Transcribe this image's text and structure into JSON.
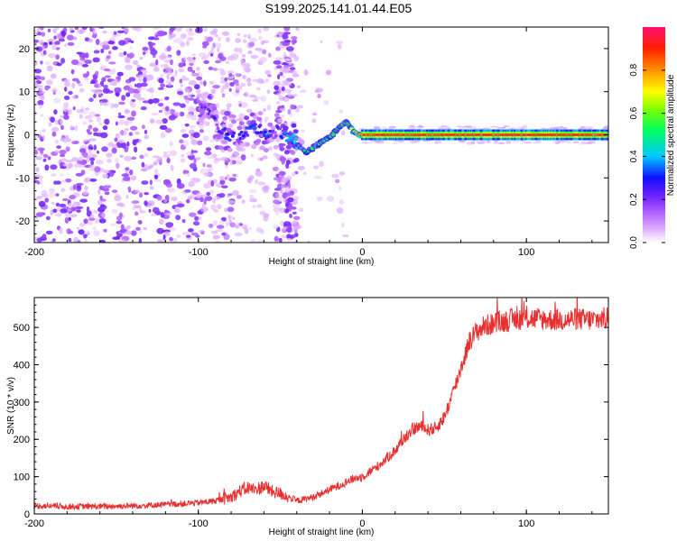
{
  "title": "S199.2025.141.01.44.E05",
  "chart_data": [
    {
      "type": "heatmap",
      "name": "spectrogram",
      "xlabel": "Height of straight line (km)",
      "ylabel": "Frequency (Hz)",
      "xlim": [
        -200,
        150
      ],
      "ylim": [
        -25,
        25
      ],
      "xticks": [
        -200,
        -100,
        0,
        100
      ],
      "yticks": [
        -20,
        -10,
        0,
        10,
        20
      ],
      "colorbar": {
        "label": "Normalized spectral amplitude",
        "range": [
          0,
          1
        ],
        "ticks": [
          0.0,
          0.2,
          0.4,
          0.6,
          0.8
        ],
        "colors": [
          "#ffffff",
          "#e0b0ff",
          "#8a2be2",
          "#3010ff",
          "#00ccff",
          "#00ff40",
          "#ffff00",
          "#ff8800",
          "#ff2000",
          "#ff1060"
        ]
      },
      "ridge": {
        "x": [
          -97,
          -93,
          -90,
          -87,
          -82,
          -77,
          -72,
          -67,
          -62,
          -57,
          -52,
          -47,
          -42,
          -38,
          -34,
          -30,
          -26,
          -22,
          -18,
          -14,
          -10,
          -6,
          -2,
          0,
          10,
          150
        ],
        "freq_hz": [
          7,
          5,
          3,
          1,
          0,
          -1,
          0,
          2,
          1,
          0,
          1,
          0,
          -1,
          -3,
          -4,
          -3,
          -2,
          -1,
          0,
          2,
          3,
          1,
          0,
          0,
          0,
          0
        ],
        "amplitude": [
          0.15,
          0.2,
          0.22,
          0.25,
          0.28,
          0.2,
          0.25,
          0.3,
          0.25,
          0.3,
          0.2,
          0.3,
          0.4,
          0.45,
          0.45,
          0.5,
          0.5,
          0.5,
          0.55,
          0.6,
          0.55,
          0.65,
          0.8,
          0.85,
          0.9,
          0.9
        ]
      },
      "noise_regions": [
        {
          "x_range": [
            -200,
            -95
          ],
          "density": "high"
        },
        {
          "x_range": [
            -95,
            -40
          ],
          "density": "medium"
        },
        {
          "x_range": [
            -70,
            -55
          ],
          "density": "vertical stripe"
        },
        {
          "x_range": [
            -55,
            -40
          ],
          "density": "vertical stripe"
        },
        {
          "x_range": [
            -40,
            -15
          ],
          "density": "low"
        }
      ]
    },
    {
      "type": "line",
      "name": "snr",
      "xlabel": "Height of straight line (km)",
      "ylabel": "SNR (10 * v/v)",
      "xlim": [
        -200,
        150
      ],
      "ylim": [
        0,
        580
      ],
      "xticks": [
        -200,
        -100,
        0,
        100
      ],
      "yticks": [
        0,
        100,
        200,
        300,
        400,
        500
      ],
      "color": "#e83030",
      "x": [
        -200,
        -180,
        -160,
        -140,
        -120,
        -100,
        -90,
        -80,
        -75,
        -70,
        -65,
        -60,
        -55,
        -50,
        -45,
        -40,
        -35,
        -30,
        -25,
        -20,
        -15,
        -10,
        -5,
        0,
        5,
        10,
        15,
        20,
        25,
        30,
        35,
        40,
        45,
        50,
        55,
        60,
        65,
        70,
        75,
        80,
        90,
        100,
        110,
        120,
        130,
        140,
        150
      ],
      "y": [
        22,
        20,
        20,
        22,
        25,
        30,
        35,
        45,
        60,
        70,
        65,
        75,
        60,
        55,
        45,
        35,
        40,
        45,
        55,
        65,
        75,
        85,
        95,
        100,
        115,
        130,
        150,
        170,
        200,
        225,
        235,
        225,
        230,
        260,
        320,
        390,
        460,
        490,
        505,
        510,
        520,
        525,
        522,
        520,
        522,
        520,
        525
      ],
      "noise_amplitude": 18
    }
  ]
}
